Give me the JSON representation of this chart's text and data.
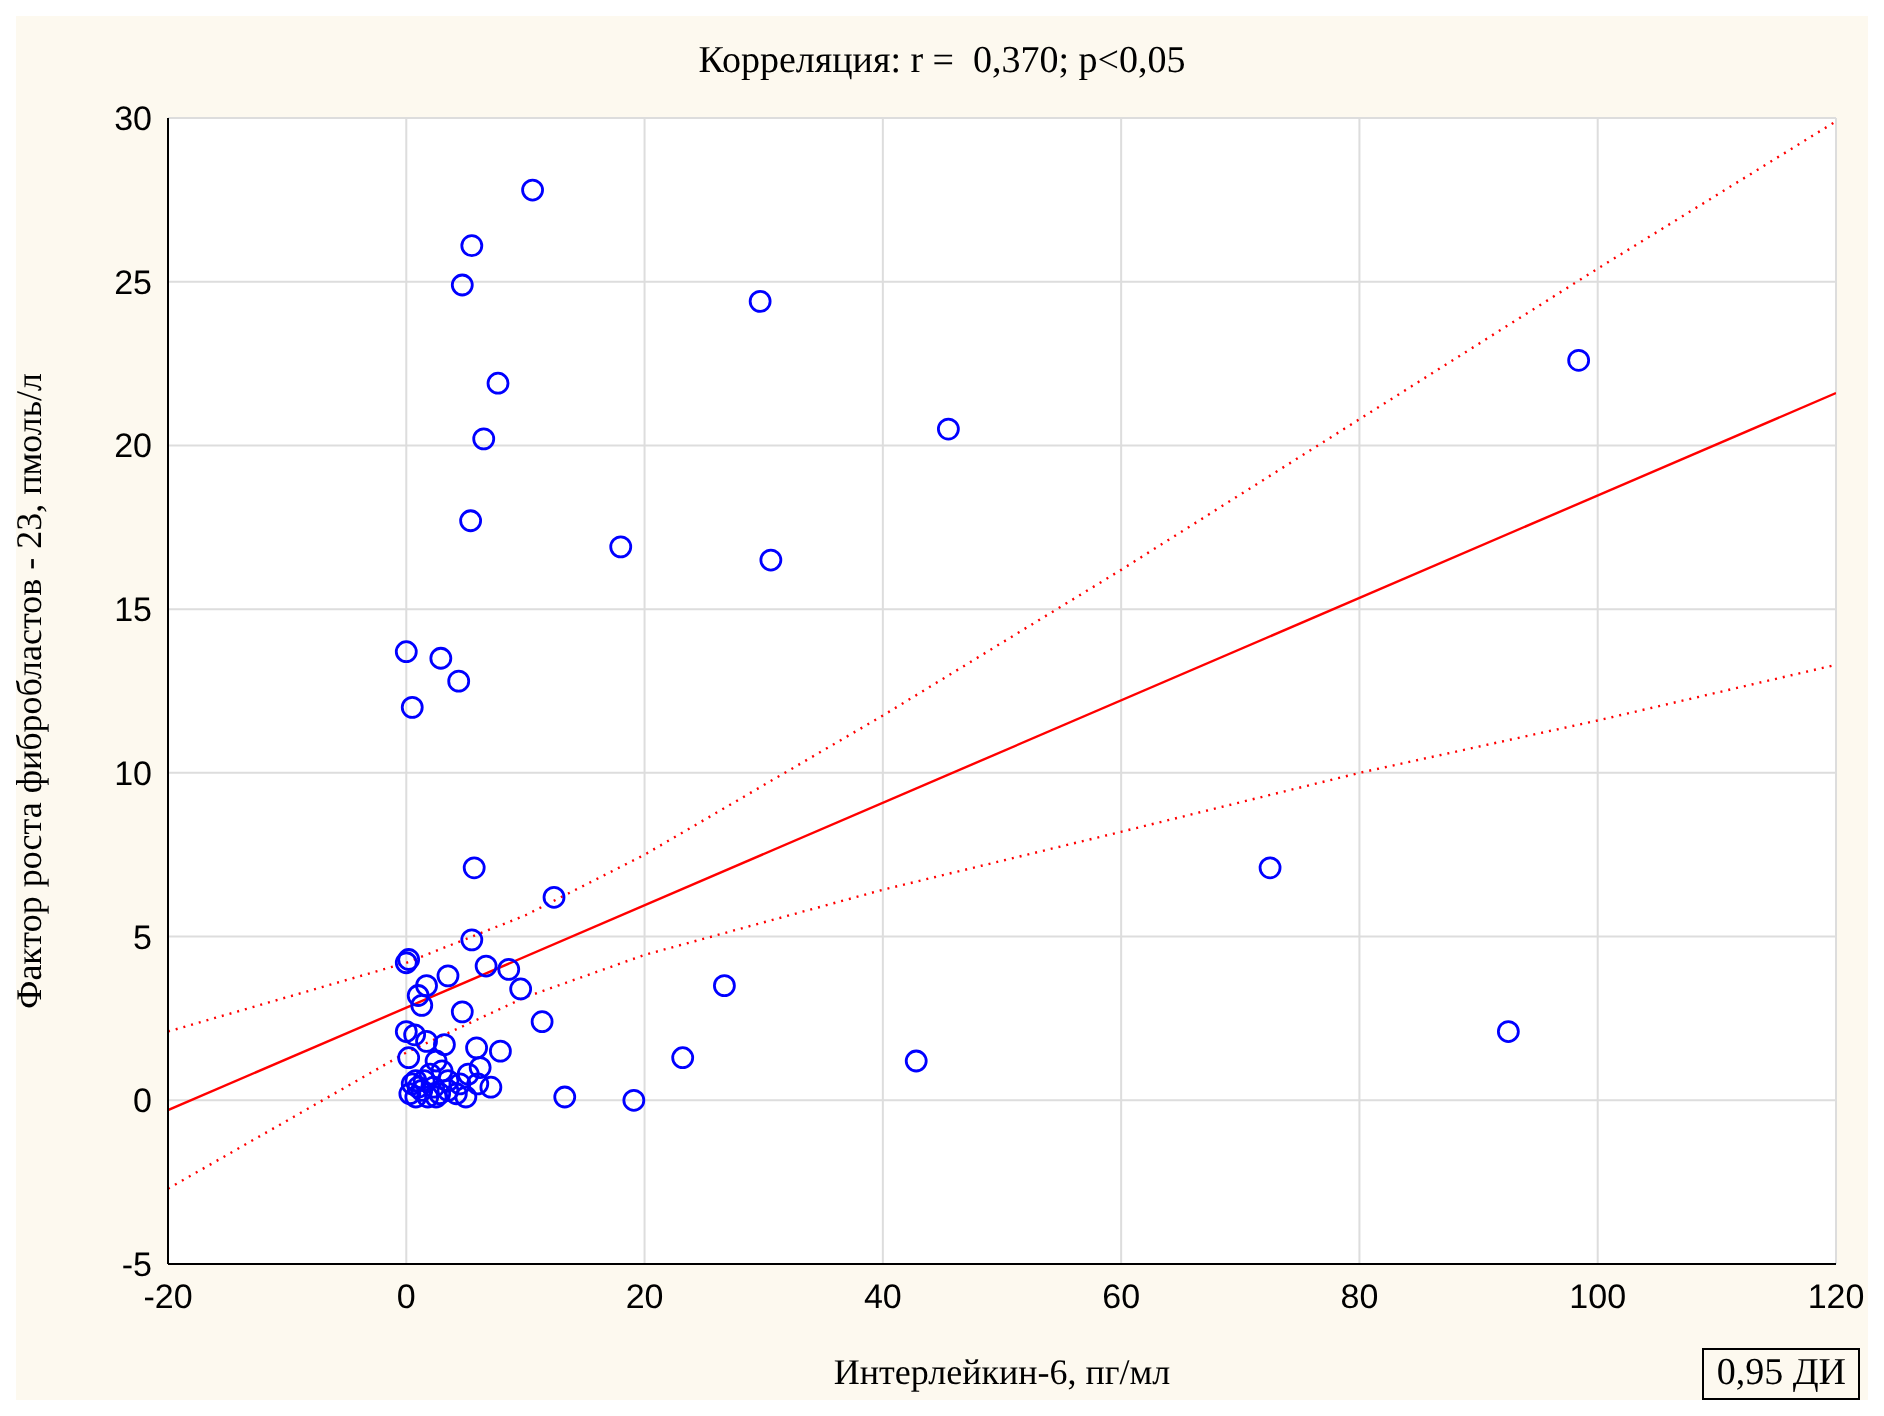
{
  "chart_data": {
    "type": "scatter",
    "title": "Корреляция: r =  0,370; p<0,05",
    "xlabel": "Интерлейкин-6, пг/мл",
    "ylabel": "Фактор роста фибробластов - 23, пмоль/л",
    "xlim": [
      -20,
      120
    ],
    "xticks": [
      -20,
      0,
      20,
      40,
      60,
      80,
      100,
      120
    ],
    "ylim": [
      -5,
      30
    ],
    "yticks": [
      -5,
      0,
      5,
      10,
      15,
      20,
      25,
      30
    ],
    "grid": true,
    "legend": false,
    "annotations": [
      "0,95 ДИ"
    ],
    "series": [
      {
        "color": "#0000ff",
        "marker": "circle",
        "x": [
          10.6,
          5.5,
          4.7,
          29.7,
          98.4,
          7.7,
          6.5,
          45.5,
          5.4,
          18.0,
          30.6,
          0,
          2.9,
          4.4,
          0.5,
          5.7,
          72.5,
          12.4,
          5.5,
          0,
          0.2,
          6.7,
          8.6,
          3.5,
          26.7,
          1.7,
          9.6,
          1.0,
          1.3,
          4.7,
          11.4,
          92.5,
          0,
          0.7,
          1.7,
          3.2,
          5.9,
          7.9,
          23.2,
          42.8,
          2.5,
          0.2,
          6.2,
          5.2,
          0.8,
          3.5,
          7.1,
          13.3,
          19.1,
          5.0,
          0.3,
          0.8,
          1.3,
          1.8,
          2.3,
          2.8,
          3.5,
          4.2,
          0.5,
          1.5,
          2.0,
          3.0,
          4.5,
          6.0,
          2.5,
          1.0
        ],
        "values": [
          27.8,
          26.1,
          24.9,
          24.4,
          22.6,
          21.9,
          20.2,
          20.5,
          17.7,
          16.9,
          16.5,
          13.7,
          13.5,
          12.8,
          12.0,
          7.1,
          7.1,
          6.2,
          4.9,
          4.2,
          4.3,
          4.1,
          4.0,
          3.8,
          3.5,
          3.5,
          3.4,
          3.2,
          2.9,
          2.7,
          2.4,
          2.1,
          2.1,
          2.0,
          1.8,
          1.7,
          1.6,
          1.5,
          1.3,
          1.2,
          1.2,
          1.3,
          1.0,
          0.8,
          0.6,
          0.6,
          0.4,
          0.1,
          0.0,
          0.1,
          0.2,
          0.1,
          0.3,
          0.1,
          0.4,
          0.2,
          0.3,
          0.2,
          0.5,
          0.6,
          0.8,
          0.9,
          0.5,
          0.5,
          0.1,
          0.4
        ]
      },
      {
        "type": "line",
        "color": "#ff0000",
        "line_style": "solid",
        "x": [
          -20,
          120
        ],
        "values": [
          -0.3,
          21.6
        ]
      },
      {
        "type": "line",
        "color": "#ff0000",
        "line_style": "dotted",
        "x": [
          -20,
          0,
          10,
          20,
          40,
          60,
          80,
          100,
          120
        ],
        "values": [
          2.1,
          4.2,
          5.65,
          7.5,
          11.75,
          16.2,
          20.8,
          25.4,
          29.9
        ]
      },
      {
        "type": "line",
        "color": "#ff0000",
        "line_style": "dotted",
        "x": [
          -20,
          0,
          10,
          20,
          40,
          60,
          80,
          100,
          120
        ],
        "values": [
          -2.7,
          1.46,
          3.15,
          4.44,
          6.43,
          8.2,
          10.0,
          11.6,
          13.3
        ]
      }
    ]
  }
}
